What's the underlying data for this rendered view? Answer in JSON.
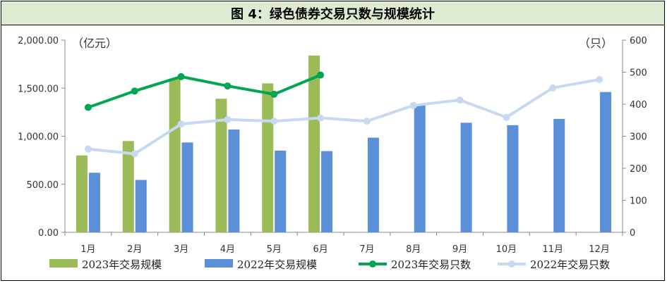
{
  "chart_data": {
    "type": "bar",
    "title": "图 4：绿色债券交易只数与规模统计",
    "categories": [
      "1月",
      "2月",
      "3月",
      "4月",
      "5月",
      "6月",
      "7月",
      "8月",
      "9月",
      "10月",
      "11月",
      "12月"
    ],
    "left_unit": "（亿元）",
    "right_unit": "（只）",
    "left_ylim": [
      0,
      2000
    ],
    "right_ylim": [
      0,
      600
    ],
    "left_ticks": [
      "0.00",
      "500.00",
      "1,000.00",
      "1,500.00",
      "2,000.00"
    ],
    "right_ticks": [
      "0",
      "100",
      "200",
      "300",
      "400",
      "500",
      "600"
    ],
    "series": [
      {
        "name": "2023年交易规模",
        "kind": "bar",
        "axis": "left",
        "color": "#9bbb59",
        "values": [
          800,
          950,
          1600,
          1390,
          1550,
          1840,
          null,
          null,
          null,
          null,
          null,
          null
        ]
      },
      {
        "name": "2022年交易规模",
        "kind": "bar",
        "axis": "left",
        "color": "#5b8fd8",
        "values": [
          620,
          545,
          935,
          1070,
          850,
          845,
          985,
          1330,
          1140,
          1115,
          1180,
          1460
        ]
      },
      {
        "name": "2023年交易只数",
        "kind": "line",
        "axis": "right",
        "color": "#00a651",
        "values": [
          390,
          441,
          486,
          457,
          431,
          491,
          null,
          null,
          null,
          null,
          null,
          null
        ]
      },
      {
        "name": "2022年交易只数",
        "kind": "line",
        "axis": "right",
        "color": "#c6d9f1",
        "values": [
          260,
          245,
          338,
          352,
          347,
          357,
          347,
          396,
          413,
          359,
          451,
          477
        ]
      }
    ],
    "grid": false,
    "legend": "bottom"
  }
}
